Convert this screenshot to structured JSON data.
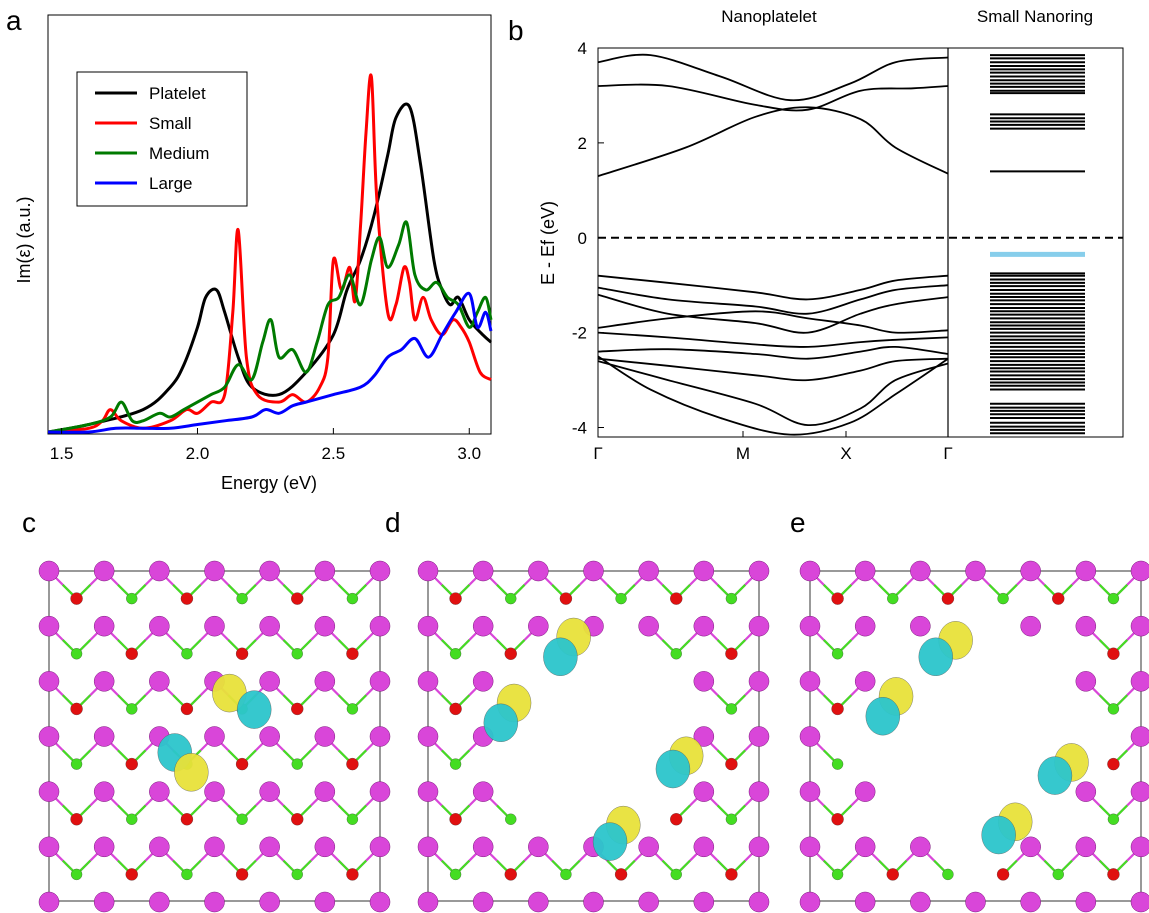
{
  "panel_letters": [
    "a",
    "b",
    "c",
    "d",
    "e"
  ],
  "chart_data": [
    {
      "panel": "a",
      "type": "line",
      "xlabel": "Energy (eV)",
      "ylabel": "Im(ε) (a.u.)",
      "xlim": [
        1.45,
        3.08
      ],
      "ylim": [
        0,
        1.0
      ],
      "xticks": [
        1.5,
        2.0,
        2.5,
        3.0
      ],
      "xtick_labels": [
        "1.5",
        "2.0",
        "2.5",
        "3.0"
      ],
      "legend_position": "top-left",
      "series": [
        {
          "name": "Platelet",
          "color": "#000000",
          "x": [
            1.45,
            1.6,
            1.8,
            1.9,
            1.95,
            2.0,
            2.03,
            2.07,
            2.1,
            2.15,
            2.2,
            2.3,
            2.4,
            2.5,
            2.55,
            2.6,
            2.65,
            2.7,
            2.73,
            2.78,
            2.82,
            2.87,
            2.9,
            2.93,
            2.96,
            3.0,
            3.05,
            3.08
          ],
          "y": [
            0.0,
            0.02,
            0.06,
            0.12,
            0.18,
            0.28,
            0.36,
            0.38,
            0.32,
            0.2,
            0.12,
            0.1,
            0.16,
            0.26,
            0.38,
            0.46,
            0.58,
            0.74,
            0.84,
            0.87,
            0.72,
            0.46,
            0.38,
            0.34,
            0.36,
            0.3,
            0.26,
            0.24
          ]
        },
        {
          "name": "Small",
          "color": "#ff0000",
          "x": [
            1.45,
            1.6,
            1.65,
            1.68,
            1.72,
            1.8,
            1.9,
            1.96,
            2.0,
            2.05,
            2.1,
            2.13,
            2.15,
            2.18,
            2.22,
            2.3,
            2.35,
            2.4,
            2.45,
            2.48,
            2.5,
            2.53,
            2.56,
            2.58,
            2.6,
            2.62,
            2.64,
            2.66,
            2.7,
            2.73,
            2.76,
            2.78,
            2.8,
            2.83,
            2.86,
            2.9,
            2.94,
            2.97,
            3.0,
            3.04,
            3.08
          ],
          "y": [
            0.0,
            0.01,
            0.03,
            0.06,
            0.03,
            0.01,
            0.03,
            0.06,
            0.05,
            0.08,
            0.1,
            0.32,
            0.54,
            0.2,
            0.1,
            0.08,
            0.1,
            0.08,
            0.12,
            0.2,
            0.46,
            0.38,
            0.44,
            0.35,
            0.55,
            0.8,
            0.95,
            0.62,
            0.32,
            0.34,
            0.44,
            0.4,
            0.3,
            0.36,
            0.3,
            0.26,
            0.3,
            0.28,
            0.24,
            0.16,
            0.14
          ]
        },
        {
          "name": "Medium",
          "color": "#007a00",
          "x": [
            1.45,
            1.6,
            1.68,
            1.72,
            1.76,
            1.8,
            1.86,
            1.9,
            1.95,
            2.0,
            2.05,
            2.1,
            2.15,
            2.2,
            2.24,
            2.27,
            2.3,
            2.35,
            2.4,
            2.44,
            2.48,
            2.52,
            2.56,
            2.6,
            2.64,
            2.67,
            2.7,
            2.74,
            2.77,
            2.8,
            2.84,
            2.88,
            2.92,
            2.96,
            3.0,
            3.03,
            3.06,
            3.08
          ],
          "y": [
            0.0,
            0.02,
            0.04,
            0.08,
            0.03,
            0.03,
            0.05,
            0.04,
            0.06,
            0.08,
            0.1,
            0.12,
            0.18,
            0.14,
            0.24,
            0.3,
            0.2,
            0.22,
            0.16,
            0.24,
            0.34,
            0.36,
            0.42,
            0.34,
            0.46,
            0.52,
            0.44,
            0.5,
            0.56,
            0.42,
            0.38,
            0.4,
            0.36,
            0.34,
            0.28,
            0.32,
            0.36,
            0.3
          ]
        },
        {
          "name": "Large",
          "color": "#0000ff",
          "x": [
            1.45,
            1.6,
            1.7,
            1.8,
            1.9,
            2.0,
            2.1,
            2.2,
            2.25,
            2.3,
            2.35,
            2.4,
            2.5,
            2.6,
            2.65,
            2.7,
            2.75,
            2.8,
            2.85,
            2.9,
            2.95,
            3.0,
            3.03,
            3.06,
            3.08
          ],
          "y": [
            0.0,
            0.0,
            0.01,
            0.01,
            0.01,
            0.02,
            0.03,
            0.04,
            0.06,
            0.05,
            0.07,
            0.08,
            0.1,
            0.12,
            0.15,
            0.2,
            0.22,
            0.25,
            0.2,
            0.26,
            0.32,
            0.37,
            0.28,
            0.32,
            0.27
          ]
        }
      ]
    },
    {
      "panel": "b",
      "type": "line",
      "subplots": [
        "Nanoplatelet",
        "Small Nanoring"
      ],
      "ylabel": "E - Ef  (eV)",
      "ylim": [
        -4.2,
        4.0
      ],
      "yticks": [
        -4,
        -2,
        0,
        2,
        4
      ],
      "ytick_labels": [
        "-4",
        "-2",
        "0",
        "2",
        "4"
      ],
      "kpoint_labels": [
        "Γ",
        "M",
        "X",
        "Γ"
      ],
      "fermi_level": 0,
      "nanoplatelet_bands": [
        {
          "name": "conduction",
          "x": [
            0,
            0.25,
            0.45,
            0.6,
            0.75,
            0.85,
            1.0
          ],
          "y": [
            1.3,
            1.9,
            2.55,
            2.75,
            2.5,
            1.9,
            1.35
          ]
        },
        {
          "name": "conduction",
          "x": [
            0,
            0.2,
            0.45,
            0.6,
            0.75,
            0.9,
            1.0
          ],
          "y": [
            3.2,
            3.2,
            2.8,
            2.7,
            3.1,
            3.15,
            3.2
          ]
        },
        {
          "name": "conduction",
          "x": [
            0,
            0.15,
            0.35,
            0.55,
            0.72,
            0.85,
            1.0
          ],
          "y": [
            3.7,
            3.85,
            3.4,
            2.9,
            3.25,
            3.7,
            3.8
          ]
        },
        {
          "name": "valence",
          "x": [
            0,
            0.2,
            0.45,
            0.6,
            0.75,
            0.85,
            1.0
          ],
          "y": [
            -0.8,
            -0.95,
            -1.15,
            -1.3,
            -1.1,
            -0.9,
            -0.8
          ]
        },
        {
          "name": "valence",
          "x": [
            0,
            0.2,
            0.45,
            0.6,
            0.75,
            0.85,
            1.0
          ],
          "y": [
            -1.05,
            -1.3,
            -1.45,
            -1.6,
            -1.3,
            -1.1,
            -1.0
          ]
        },
        {
          "name": "valence",
          "x": [
            0,
            0.2,
            0.45,
            0.6,
            0.75,
            0.85,
            1.0
          ],
          "y": [
            -1.2,
            -1.6,
            -1.8,
            -2.0,
            -1.6,
            -1.4,
            -1.25
          ]
        },
        {
          "name": "valence",
          "x": [
            0,
            0.2,
            0.45,
            0.6,
            0.75,
            0.85,
            1.0
          ],
          "y": [
            -1.9,
            -1.7,
            -1.55,
            -1.7,
            -1.85,
            -2.0,
            -1.95
          ]
        },
        {
          "name": "valence",
          "x": [
            0,
            0.2,
            0.45,
            0.6,
            0.75,
            0.85,
            1.0
          ],
          "y": [
            -2.0,
            -2.1,
            -2.25,
            -2.3,
            -2.2,
            -2.15,
            -2.1
          ]
        },
        {
          "name": "valence",
          "x": [
            0,
            0.2,
            0.45,
            0.6,
            0.75,
            0.85,
            1.0
          ],
          "y": [
            -2.4,
            -2.35,
            -2.45,
            -2.55,
            -2.4,
            -2.3,
            -2.45
          ]
        },
        {
          "name": "valence",
          "x": [
            0,
            0.2,
            0.45,
            0.6,
            0.75,
            0.85,
            1.0
          ],
          "y": [
            -2.55,
            -2.7,
            -2.9,
            -3.0,
            -2.8,
            -2.6,
            -2.55
          ]
        },
        {
          "name": "valence",
          "x": [
            0,
            0.2,
            0.45,
            0.6,
            0.75,
            0.85,
            1.0
          ],
          "y": [
            -2.6,
            -3.0,
            -3.5,
            -3.95,
            -3.6,
            -3.0,
            -2.65
          ]
        },
        {
          "name": "valence",
          "x": [
            0,
            0.15,
            0.35,
            0.55,
            0.72,
            0.85,
            1.0
          ],
          "y": [
            -2.5,
            -3.2,
            -3.8,
            -4.15,
            -3.9,
            -3.3,
            -2.55
          ]
        }
      ],
      "nanoring_levels": [
        3.85,
        3.78,
        3.7,
        3.62,
        3.55,
        3.48,
        3.4,
        3.32,
        3.25,
        3.18,
        3.1,
        3.05,
        2.6,
        2.52,
        2.45,
        2.38,
        2.3,
        1.4,
        -0.75,
        -0.8,
        -0.88,
        -0.95,
        -1.02,
        -1.1,
        -1.18,
        -1.25,
        -1.32,
        -1.4,
        -1.48,
        -1.55,
        -1.62,
        -1.7,
        -1.78,
        -1.85,
        -1.92,
        -2.0,
        -2.08,
        -2.15,
        -2.22,
        -2.3,
        -2.38,
        -2.45,
        -2.52,
        -2.6,
        -2.68,
        -2.75,
        -2.82,
        -2.9,
        -2.98,
        -3.05,
        -3.12,
        -3.2,
        -3.5,
        -3.58,
        -3.65,
        -3.72,
        -3.8,
        -3.9,
        -3.98,
        -4.05,
        -4.12
      ],
      "nanoring_highlight_level": {
        "energy": -0.35,
        "color": "#87ceeb"
      }
    }
  ],
  "structure_panels": {
    "colors": {
      "large_atom": "#d946d9",
      "red_atom": "#e01010",
      "green_atom": "#44dd22",
      "iso_yellow": "#e8e23a",
      "iso_cyan": "#2cc6cc"
    },
    "c_lobes": [
      {
        "fx": 0.545,
        "fy": 0.37,
        "color": "yellow"
      },
      {
        "fx": 0.62,
        "fy": 0.42,
        "color": "cyan"
      },
      {
        "fx": 0.38,
        "fy": 0.55,
        "color": "cyan"
      },
      {
        "fx": 0.43,
        "fy": 0.61,
        "color": "yellow"
      }
    ]
  }
}
